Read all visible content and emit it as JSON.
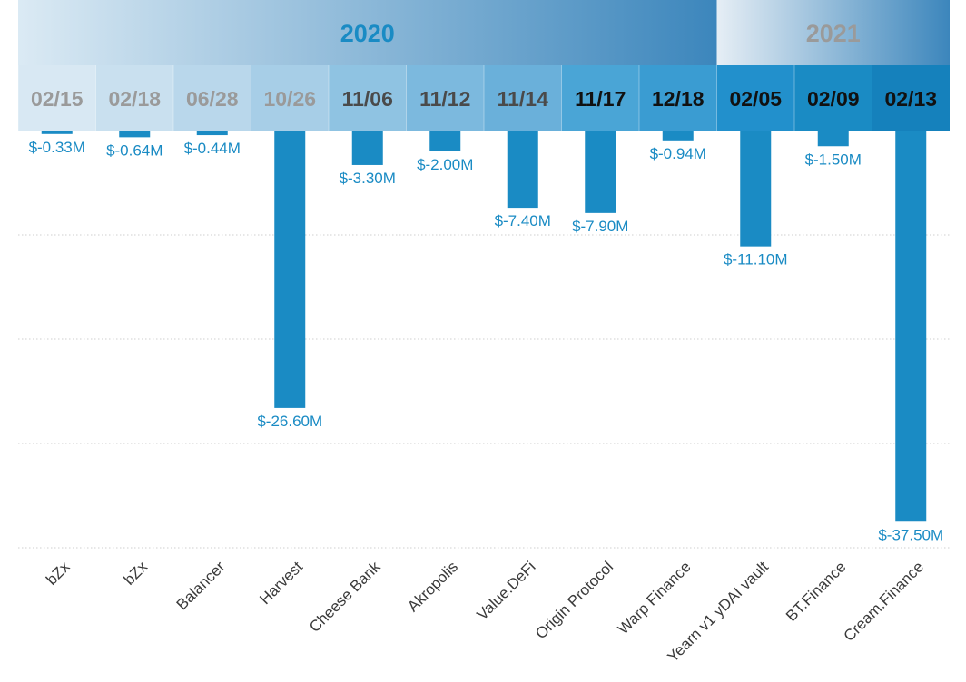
{
  "chart_data": {
    "type": "bar",
    "orientation": "vertical-downward",
    "grid": "horizontal-dotted",
    "y_range": [
      -40,
      0
    ],
    "unit": "M USD",
    "colors": {
      "bar": "#1a8bc4",
      "value_label": "#1a8bc4",
      "category_label": "#3a3a3a",
      "grid": "#cfcfcf"
    },
    "year_bands": [
      {
        "label": "2020",
        "gradient": [
          "#dbeaf4",
          "#3c86bc"
        ],
        "text_color": "#1a8bc4"
      },
      {
        "label": "2021",
        "gradient": [
          "#e6eef5",
          "#3c86bc"
        ],
        "text_color": "#9a9a9a"
      }
    ],
    "dates": [
      {
        "label": "02/15",
        "bg": "#d8e8f3",
        "text_color": "#9a9a9a"
      },
      {
        "label": "02/18",
        "bg": "#c9e0ef",
        "text_color": "#9a9a9a"
      },
      {
        "label": "06/28",
        "bg": "#b9d7eb",
        "text_color": "#9a9a9a"
      },
      {
        "label": "10/26",
        "bg": "#a7cee7",
        "text_color": "#9a9a9a"
      },
      {
        "label": "11/06",
        "bg": "#8fc3e2",
        "text_color": "#4a4a4a"
      },
      {
        "label": "11/12",
        "bg": "#7cb9de",
        "text_color": "#4a4a4a"
      },
      {
        "label": "11/14",
        "bg": "#6ab0da",
        "text_color": "#4a4a4a"
      },
      {
        "label": "11/17",
        "bg": "#4aa5d6",
        "text_color": "#111111"
      },
      {
        "label": "12/18",
        "bg": "#3a9cd2",
        "text_color": "#111111"
      },
      {
        "label": "02/05",
        "bg": "#2290cc",
        "text_color": "#111111"
      },
      {
        "label": "02/09",
        "bg": "#1a8bc4",
        "text_color": "#111111"
      },
      {
        "label": "02/13",
        "bg": "#1581bc",
        "text_color": "#111111"
      }
    ],
    "categories": [
      "bZx",
      "bZx",
      "Balancer",
      "Harvest",
      "Cheese Bank",
      "Akropolis",
      "Value.DeFi",
      "Origin Protocol",
      "Warp Finance",
      "Yearn v1 yDAI vault",
      "BT.Finance",
      "Cream.Finance"
    ],
    "values": [
      -0.33,
      -0.64,
      -0.44,
      -26.6,
      -3.3,
      -2.0,
      -7.4,
      -7.9,
      -0.94,
      -11.1,
      -1.5,
      -37.5
    ],
    "value_labels": [
      "$-0.33M",
      "$-0.64M",
      "$-0.44M",
      "$-26.60M",
      "$-3.30M",
      "$-2.00M",
      "$-7.40M",
      "$-7.90M",
      "$-0.94M",
      "$-11.10M",
      "$-1.50M",
      "$-37.50M"
    ]
  }
}
